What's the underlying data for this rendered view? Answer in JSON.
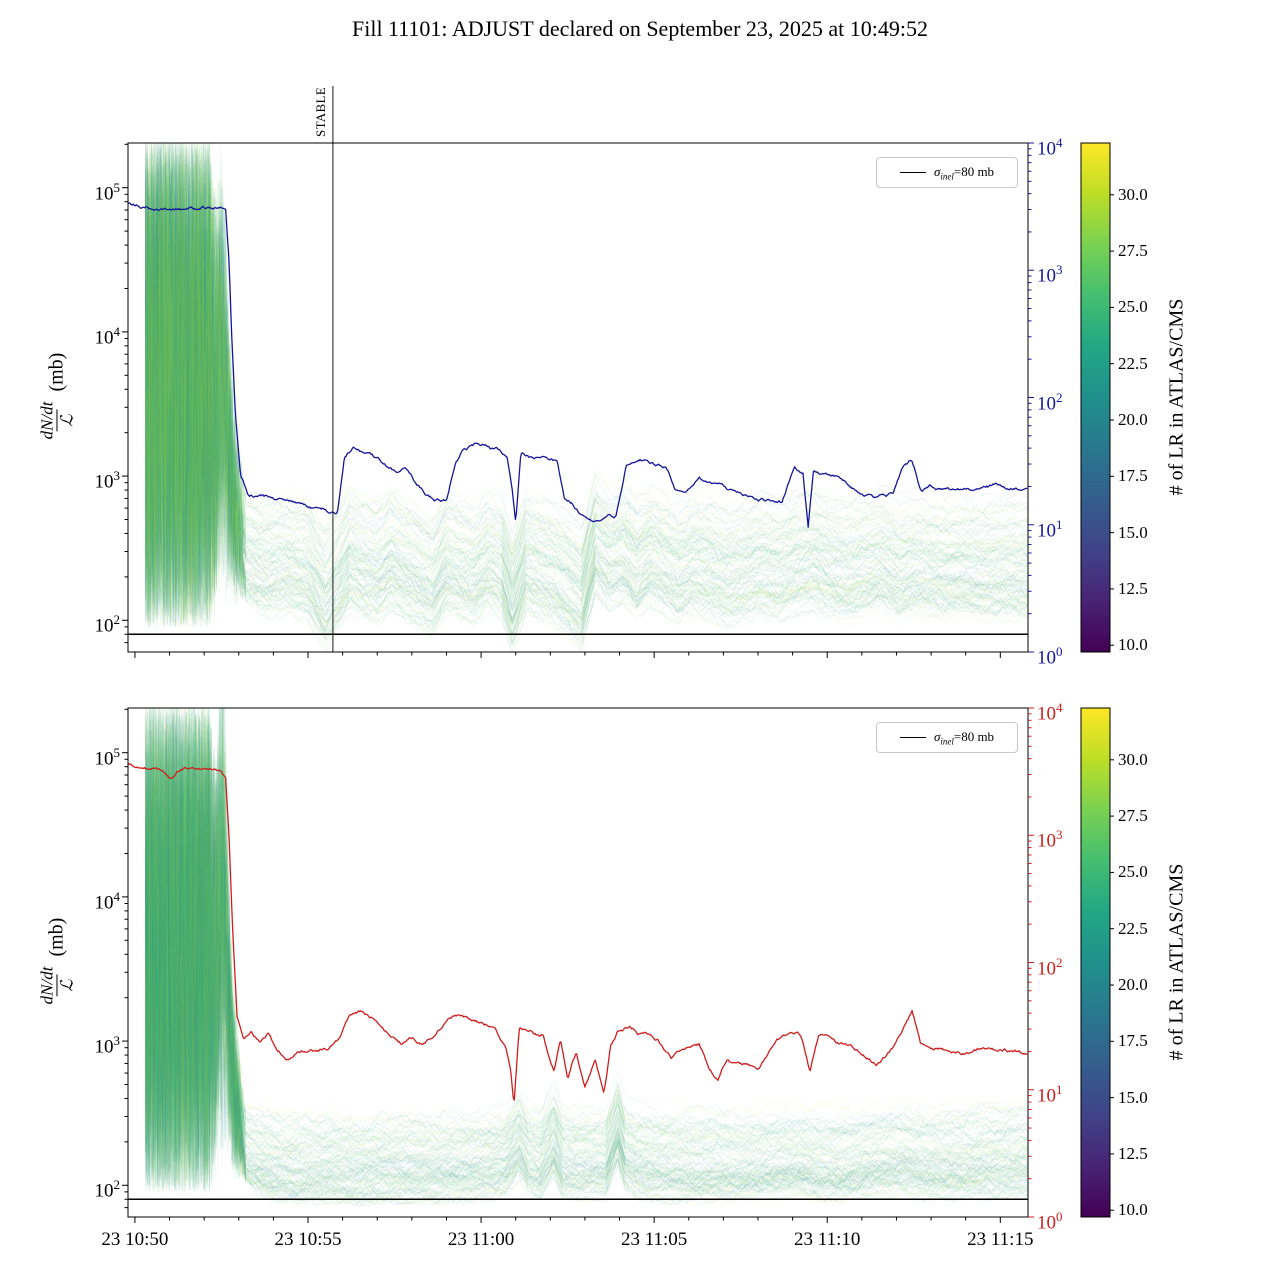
{
  "chart_data": {
    "type": "line",
    "title": "Fill 11101: ADJUST declared on September 23, 2025 at 10:49:52",
    "stable_label": "STABLE",
    "stable_time_min": 5.72,
    "sigma_inel_mb": 80,
    "ylabel": {
      "numerator": "dN/dt",
      "denominator": "ℒ",
      "unit": "(mb)"
    },
    "legend": {
      "symbol": "σ",
      "subscript": "inel",
      "rest": "=80 mb"
    },
    "x_axis": {
      "range_min": -0.2,
      "range_max": 25.8,
      "tick_labels": [
        "23 10:50",
        "23 10:55",
        "23 11:00",
        "23 11:05",
        "23 11:10",
        "23 11:15"
      ],
      "tick_minutes": [
        0,
        5,
        10,
        15,
        20,
        25
      ]
    },
    "colorbar": {
      "label": "# of LR in ATLAS/CMS",
      "vmin": 9.7,
      "vmax": 32.3,
      "tick_labels": [
        "30.0",
        "27.5",
        "25.0",
        "22.5",
        "20.0",
        "17.5",
        "15.0",
        "12.5",
        "10.0"
      ],
      "tick_values": [
        30,
        27.5,
        25,
        22.5,
        20,
        17.5,
        15,
        12.5,
        10
      ],
      "stops": [
        [
          0,
          68,
          1,
          84
        ],
        [
          0.1,
          72,
          35,
          116
        ],
        [
          0.2,
          64,
          67,
          135
        ],
        [
          0.3,
          52,
          94,
          141
        ],
        [
          0.4,
          41,
          120,
          142
        ],
        [
          0.5,
          32,
          144,
          140
        ],
        [
          0.6,
          34,
          167,
          132
        ],
        [
          0.7,
          68,
          190,
          112
        ],
        [
          0.8,
          121,
          209,
          81
        ],
        [
          0.9,
          189,
          222,
          38
        ],
        [
          1,
          253,
          231,
          37
        ]
      ]
    },
    "panels": [
      {
        "name": "upper",
        "line_color": "#15159a",
        "left_ticks": [
          5,
          4,
          3,
          2
        ],
        "right_ticks": [
          4,
          3,
          2,
          1,
          0
        ],
        "left_log_range": [
          1.78,
          5.31
        ],
        "right_log_range": [
          0,
          4
        ],
        "counter": {
          "m": [
            -0.2,
            0,
            0.5,
            1.0,
            1.5,
            2.0,
            2.4,
            2.62,
            2.72,
            2.8,
            2.9,
            3.05,
            3.3,
            3.8,
            4.3,
            4.8,
            5.2,
            5.6,
            5.85,
            6.05,
            6.3,
            6.7,
            7.1,
            7.5,
            7.8,
            8.1,
            8.4,
            8.7,
            9.0,
            9.25,
            9.5,
            9.8,
            10.1,
            10.45,
            10.75,
            10.9,
            11.0,
            11.15,
            11.5,
            11.9,
            12.2,
            12.4,
            12.6,
            12.9,
            13.2,
            13.6,
            13.9,
            14.2,
            14.6,
            15.0,
            15.35,
            15.6,
            15.9,
            16.3,
            16.7,
            17.2,
            17.7,
            18.2,
            18.7,
            19.05,
            19.3,
            19.45,
            19.6,
            19.9,
            20.4,
            20.9,
            21.4,
            21.9,
            22.2,
            22.45,
            22.7,
            22.95,
            23.4,
            23.9,
            24.4,
            24.9,
            25.4,
            25.8
          ],
          "v": [
            3300,
            3200,
            3100,
            3150,
            3200,
            3150,
            3100,
            3000,
            1200,
            300,
            80,
            25,
            17,
            16,
            15,
            14,
            13,
            12.5,
            13,
            35,
            42,
            38,
            32,
            26,
            28,
            21,
            17,
            15.5,
            15,
            30,
            40,
            42,
            41,
            39,
            36,
            20,
            11,
            38,
            34,
            32,
            30,
            16,
            15,
            12,
            11,
            11.5,
            12,
            31,
            34,
            31,
            29,
            20,
            19,
            24,
            22,
            18,
            16,
            15,
            14.5,
            28,
            26,
            10,
            27,
            26,
            22,
            17,
            16,
            17,
            28,
            31,
            19,
            20,
            20,
            20,
            19.5,
            20,
            20,
            19.5
          ]
        },
        "band_median": {
          "m": [
            3.2,
            3.8,
            4.4,
            5.0,
            5.5,
            5.9,
            6.2,
            6.6,
            7.0,
            7.4,
            7.8,
            8.2,
            8.6,
            9.0,
            9.4,
            9.8,
            10.2,
            10.6,
            10.9,
            11.3,
            11.7,
            12.1,
            12.5,
            12.9,
            13.3,
            13.7,
            14.1,
            14.5,
            14.9,
            15.3,
            15.7,
            16.1,
            16.6,
            17.1,
            17.6,
            18.1,
            18.6,
            19.1,
            19.6,
            20.1,
            20.6,
            21.1,
            21.6,
            22.1,
            22.5,
            23.0,
            23.5,
            24.0,
            24.5,
            25.0,
            25.8
          ],
          "v": [
            300,
            260,
            280,
            250,
            160,
            220,
            300,
            260,
            240,
            290,
            250,
            220,
            190,
            280,
            250,
            230,
            290,
            260,
            150,
            290,
            260,
            240,
            200,
            160,
            380,
            300,
            340,
            260,
            320,
            280,
            240,
            280,
            260,
            230,
            250,
            270,
            250,
            280,
            300,
            260,
            240,
            260,
            280,
            240,
            260,
            250,
            240,
            250,
            240,
            245,
            240
          ]
        },
        "band": {
          "n_lines": 130,
          "seed": 11,
          "offset_min": -0.33,
          "offset_range": 0.73,
          "offset_shape": 1.3,
          "noise_start": 0.3,
          "noise_end": 2.15,
          "funnel_end": 3.2,
          "spike_center": 2.55,
          "spike_sigma": 0.17,
          "spike_amp": 1.0,
          "color_min": 18,
          "color_max": 31
        }
      },
      {
        "name": "lower",
        "line_color": "#cf1d1d",
        "left_ticks": [
          5,
          4,
          3,
          2
        ],
        "right_ticks": [
          4,
          3,
          2,
          1,
          0
        ],
        "left_log_range": [
          1.78,
          5.31
        ],
        "right_log_range": [
          0,
          4
        ],
        "counter": {
          "m": [
            -0.2,
            0,
            0.4,
            0.8,
            1.05,
            1.3,
            1.7,
            2.1,
            2.45,
            2.62,
            2.72,
            2.82,
            2.95,
            3.15,
            3.35,
            3.6,
            3.85,
            4.1,
            4.4,
            4.7,
            5.0,
            5.3,
            5.6,
            5.9,
            6.2,
            6.5,
            6.9,
            7.3,
            7.7,
            8.0,
            8.3,
            8.6,
            8.9,
            9.2,
            9.5,
            9.8,
            10.1,
            10.4,
            10.7,
            10.85,
            10.95,
            11.1,
            11.4,
            11.8,
            12.1,
            12.3,
            12.5,
            12.75,
            13.0,
            13.3,
            13.55,
            13.75,
            13.95,
            14.3,
            14.7,
            15.1,
            15.5,
            15.9,
            16.3,
            16.6,
            16.85,
            17.1,
            17.5,
            18.0,
            18.5,
            18.95,
            19.25,
            19.5,
            19.75,
            20.0,
            20.4,
            20.9,
            21.4,
            21.9,
            22.2,
            22.45,
            22.7,
            23.0,
            23.5,
            24.0,
            24.5,
            25.0,
            25.5,
            25.8
          ],
          "v": [
            3700,
            3600,
            3500,
            3400,
            2800,
            3400,
            3500,
            3500,
            3400,
            3000,
            1000,
            200,
            40,
            26,
            30,
            24,
            28,
            20,
            18,
            20,
            21,
            20,
            22,
            26,
            38,
            40,
            34,
            28,
            24,
            26,
            23,
            27,
            33,
            37,
            36,
            34,
            31,
            29,
            22,
            15,
            8,
            32,
            30,
            27,
            14,
            24,
            12,
            20,
            11,
            18,
            9,
            22,
            28,
            30,
            27,
            24,
            18,
            20,
            22,
            14,
            12,
            18,
            16,
            15,
            25,
            30,
            27,
            14,
            27,
            26,
            24,
            20,
            16,
            22,
            30,
            40,
            22,
            20,
            20,
            20,
            21,
            20,
            20,
            20
          ]
        },
        "band_median": {
          "m": [
            3.2,
            4.0,
            4.8,
            5.6,
            6.4,
            7.2,
            8.0,
            8.8,
            9.6,
            10.2,
            10.7,
            11.1,
            11.35,
            11.7,
            12.1,
            12.35,
            12.7,
            13.1,
            13.6,
            13.95,
            14.15,
            14.5,
            15.0,
            15.6,
            16.2,
            16.8,
            17.4,
            18.0,
            18.6,
            19.2,
            19.8,
            20.4,
            21.0,
            21.6,
            22.2,
            22.8,
            23.4,
            24.0,
            24.6,
            25.2,
            25.8
          ],
          "v": [
            165,
            140,
            135,
            140,
            135,
            138,
            140,
            136,
            138,
            142,
            150,
            200,
            160,
            145,
            210,
            150,
            145,
            148,
            145,
            250,
            170,
            150,
            142,
            140,
            138,
            140,
            136,
            140,
            145,
            150,
            143,
            140,
            148,
            152,
            158,
            145,
            142,
            146,
            150,
            152,
            155
          ]
        },
        "band": {
          "n_lines": 130,
          "seed": 29,
          "offset_min": -0.18,
          "offset_range": 0.53,
          "offset_shape": 1.6,
          "noise_start": 0.3,
          "noise_end": 2.15,
          "funnel_end": 3.2,
          "spike_center": 2.55,
          "spike_sigma": 0.17,
          "spike_amp": 1.6,
          "color_min": 18,
          "color_max": 31
        }
      }
    ]
  }
}
